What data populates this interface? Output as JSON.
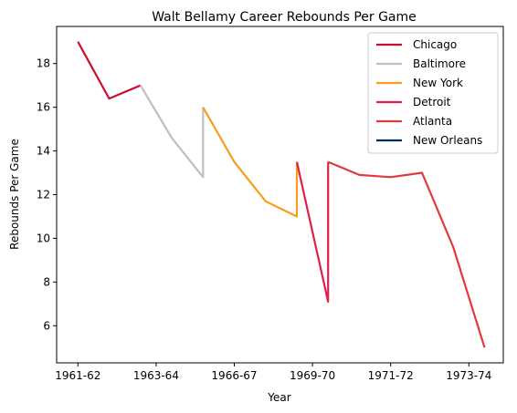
{
  "chart_data": {
    "type": "line",
    "title": "Walt Bellamy Career Rebounds Per Game",
    "xlabel": "Year",
    "ylabel": "Rebounds Per Game",
    "x_ticks": [
      "1961-62",
      "1963-64",
      "1966-67",
      "1969-70",
      "1971-72",
      "1973-74"
    ],
    "x_tick_positions": [
      0,
      2.5,
      5,
      7.5,
      10,
      12.5
    ],
    "xlim": [
      -0.68,
      13.6
    ],
    "ylim": [
      4.3,
      19.7
    ],
    "y_ticks": [
      6,
      8,
      10,
      12,
      14,
      16,
      18
    ],
    "grid": false,
    "legend_position": "top-right",
    "series": [
      {
        "name": "Chicago",
        "color": "#C8102E",
        "points": [
          [
            0,
            19.0
          ],
          [
            1,
            16.4
          ],
          [
            2,
            17.0
          ]
        ]
      },
      {
        "name": "Baltimore",
        "color": "#BFBFBF",
        "points": [
          [
            2,
            17.0
          ],
          [
            3,
            14.6
          ],
          [
            4,
            12.8
          ],
          [
            4,
            16.0
          ]
        ]
      },
      {
        "name": "New York",
        "color": "#F5A01A",
        "points": [
          [
            4,
            16.0
          ],
          [
            5,
            13.5
          ],
          [
            6,
            11.7
          ],
          [
            7,
            11.0
          ],
          [
            7,
            13.5
          ]
        ]
      },
      {
        "name": "Detroit",
        "color": "#E0204A",
        "points": [
          [
            7,
            13.5
          ],
          [
            8,
            7.1
          ],
          [
            8,
            13.5
          ]
        ]
      },
      {
        "name": "Atlanta",
        "color": "#E03A3E",
        "points": [
          [
            8,
            13.5
          ],
          [
            9,
            12.9
          ],
          [
            10,
            12.8
          ],
          [
            11,
            13.0
          ],
          [
            12,
            9.6
          ],
          [
            13,
            5.0
          ]
        ]
      },
      {
        "name": "New Orleans",
        "color": "#002B5C",
        "points": []
      }
    ]
  }
}
